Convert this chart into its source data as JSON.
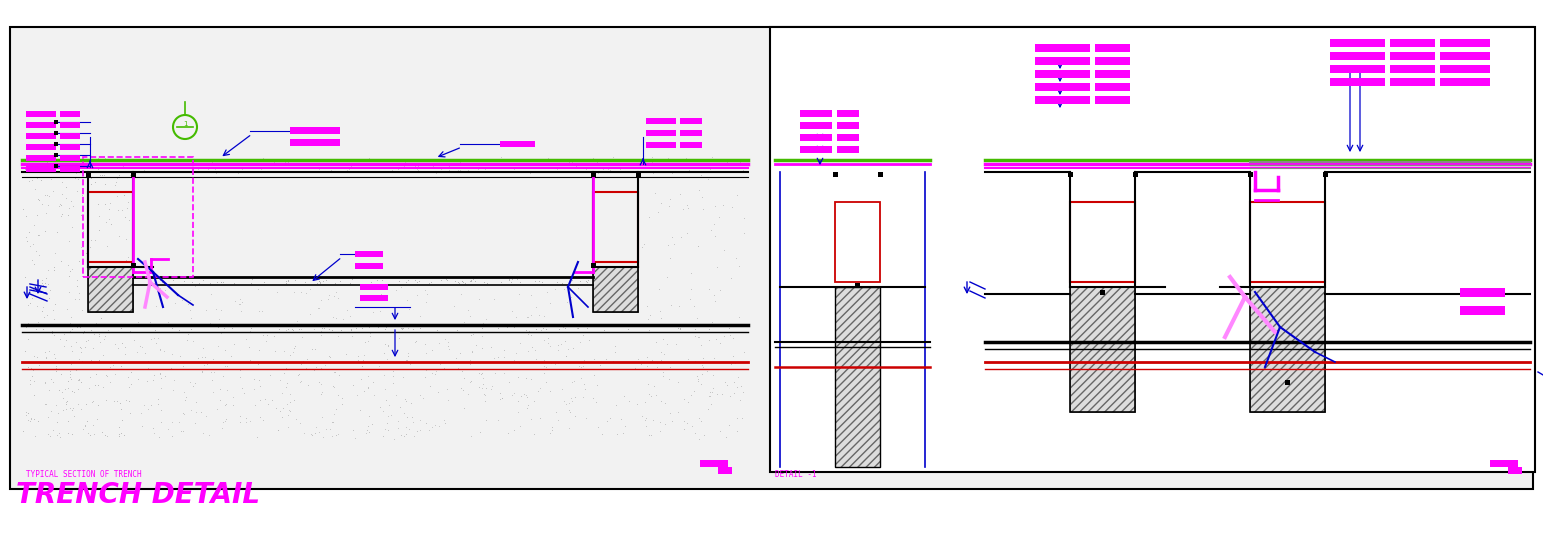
{
  "bg_color": "#ffffff",
  "outer_bg": "#f2f2f2",
  "title_text": "TRENCH DETAIL",
  "title_color": "#ff00ff",
  "detail1_label": "DETAIL -1",
  "typical_section_label": "TYPICAL SECTION OF TRENCH",
  "blue": "#0000cc",
  "magenta": "#ff00ff",
  "red": "#cc0000",
  "green": "#44bb00",
  "black": "#000000",
  "gray_speckle": "#aaaaaa",
  "hatch_color": "#555555",
  "white": "#ffffff",
  "gray_line": "#888888",
  "pink_light": "#ff88ff"
}
